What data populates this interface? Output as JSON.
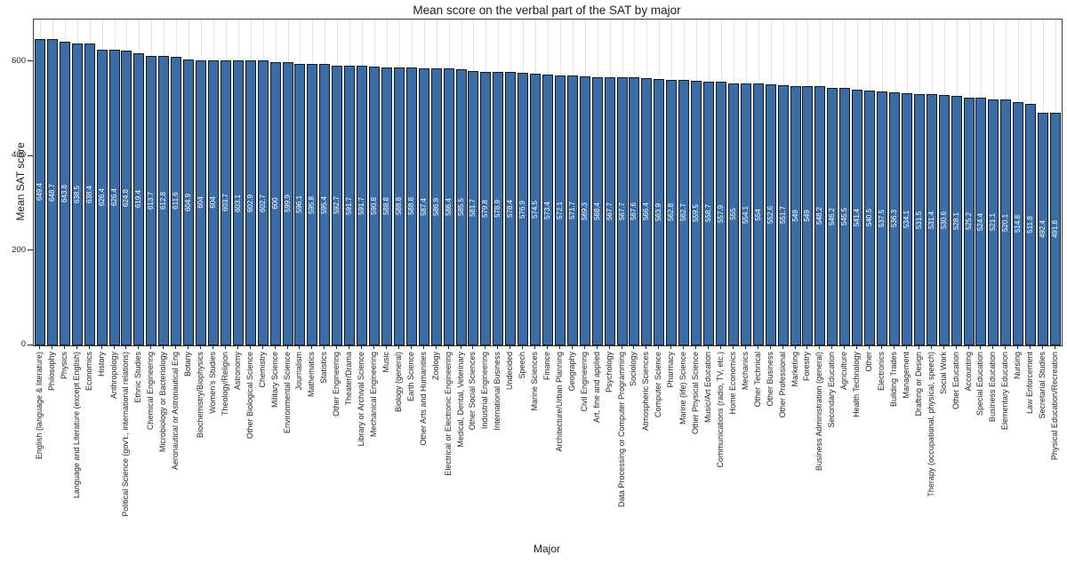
{
  "chart_data": {
    "type": "bar",
    "title": "Mean score on the verbal part of the SAT by major",
    "xlabel": "Major",
    "ylabel": "Mean SAT score",
    "ylim": [
      0,
      690
    ],
    "yticks": [
      0,
      200,
      400,
      600
    ],
    "grid": "vertical light-gray gridline at each category, behind bars",
    "legend": "none",
    "bar_color": "#3a6ca6",
    "bar_edge_color": "#131a24",
    "value_label_color": "#ffffff",
    "grid_color": "#e4e4e4",
    "categories": [
      "English (language & literature)",
      "Philosophy",
      "Physics",
      "Language and Literature (except English)",
      "Economics",
      "History",
      "Anthropology",
      "Political Science (gov't., international relations)",
      "Ethnic Studies",
      "Chemical Engineering",
      "Microbiology or Bacteriology",
      "Aeronautical or Astronautical Eng",
      "Botany",
      "Biochemistry/Biophysics",
      "Women's Studies",
      "Theology/Religion",
      "Astronomy",
      "Other Biological Science",
      "Chemistry",
      "Military Science",
      "Environmental Science",
      "Journalism",
      "Mathematics",
      "Statistics",
      "Other Engineering",
      "Theater/Drama",
      "Library or Archival Science",
      "Mechanical Engineering",
      "Music",
      "Biology (general)",
      "Earth Science",
      "Other Arts and Humanities",
      "Zoology",
      "Electrical or Electronic Engineering",
      "Medical, Dental, Veterinary",
      "Other Social Sciences",
      "Industrial Engineering",
      "International Business",
      "Undecided",
      "Speech",
      "Marine Sciences",
      "Finance",
      "Architecture/Urban Planning",
      "Geography",
      "Civil Engineering",
      "Art, fine and applied",
      "Psychology",
      "Data Processing or Computer Programming",
      "Sociology",
      "Atmospheric Sciences",
      "Computer Science",
      "Pharmacy",
      "Marine (life) Science",
      "Other Physical Science",
      "Music/Art Education",
      "Communications (radio, TV, etc.)",
      "Home Economics",
      "Mechanics",
      "Other Technical",
      "Other Business",
      "Other Professional",
      "Marketing",
      "Forestry",
      "Business Administration (general)",
      "Secondary Education",
      "Agriculture",
      "Health Technology",
      "Other",
      "Electronics",
      "Building Trades",
      "Management",
      "Drafting or Design",
      "Therapy (occupational, physical, speech)",
      "Social Work",
      "Other Education",
      "Accounting",
      "Special Education",
      "Business Education",
      "Elementary Education",
      "Nursing",
      "Law Enforcement",
      "Secretarial Studies",
      "Physical Education/Recreation"
    ],
    "values": [
      649.4,
      648.7,
      643.8,
      638.5,
      638.4,
      626.4,
      626.4,
      624.8,
      619.4,
      613.7,
      612.8,
      611.6,
      604.9,
      604,
      604,
      603.7,
      603.1,
      602.9,
      602.7,
      600,
      599.9,
      596.1,
      595.8,
      595.4,
      592.7,
      591.7,
      591.7,
      590.8,
      588.8,
      588.8,
      588.8,
      587.4,
      586.9,
      586.4,
      585.5,
      581.7,
      579.8,
      578.9,
      578.4,
      576.9,
      574.5,
      573.4,
      572.1,
      571.7,
      569.3,
      568.4,
      567.7,
      567.7,
      567.6,
      566.4,
      563.9,
      562.8,
      562.7,
      559.5,
      558.7,
      557.9,
      555,
      554.1,
      554,
      552.6,
      551.7,
      549,
      549,
      548.2,
      546.2,
      545.5,
      541.4,
      540.5,
      537.5,
      536.3,
      534.1,
      531.5,
      531.4,
      530.6,
      528.1,
      525.2,
      524.4,
      521.1,
      520.1,
      514.8,
      511.8,
      492.4,
      491.8
    ]
  }
}
